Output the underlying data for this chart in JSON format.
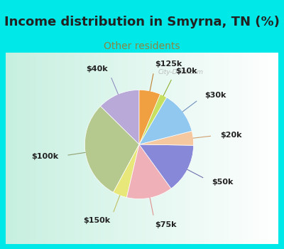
{
  "title": "Income distribution in Smyrna, TN (%)",
  "subtitle": "Other residents",
  "labels": [
    "$40k",
    "$100k",
    "$150k",
    "$75k",
    "$50k",
    "$20k",
    "$30k",
    "$10k",
    "$125k"
  ],
  "sizes": [
    12,
    28,
    4,
    13,
    14,
    4,
    12,
    2,
    6
  ],
  "colors": [
    "#b8a9d9",
    "#b5c98e",
    "#e8e87a",
    "#f0b0b8",
    "#8888d8",
    "#f5c8a0",
    "#90c8f0",
    "#c8e060",
    "#f0a040"
  ],
  "start_angle": 90,
  "background_color": "#00e8e8",
  "title_fontsize": 13,
  "subtitle_fontsize": 10,
  "subtitle_color": "#888844",
  "watermark": "City-Data.com",
  "label_fontsize": 8,
  "line_colors": [
    "#9090c0",
    "#90a070",
    "#c0c060",
    "#e09090",
    "#7070b0",
    "#d0a070",
    "#7090c0",
    "#90b030",
    "#c08030"
  ]
}
